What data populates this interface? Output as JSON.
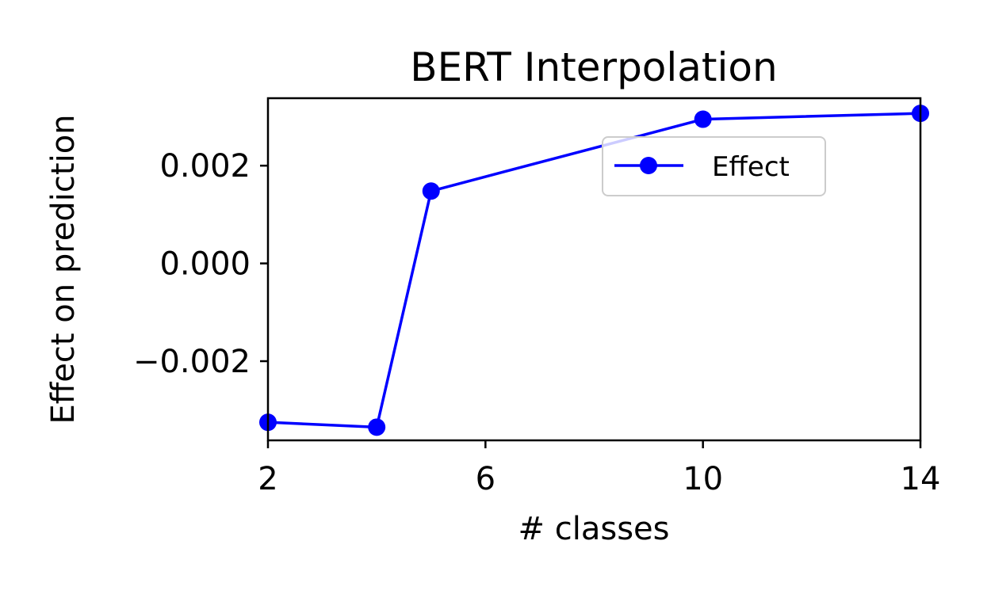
{
  "chart_data": {
    "type": "line",
    "title": "BERT Interpolation",
    "xlabel": "# classes",
    "ylabel": "Effect on prediction",
    "x": [
      2,
      4,
      5,
      10,
      14
    ],
    "series": [
      {
        "name": "Effect",
        "color": "#0000ff",
        "marker": "circle",
        "values": [
          -0.00325,
          -0.00335,
          0.00148,
          0.00295,
          0.00307
        ]
      }
    ],
    "xlim": [
      2,
      14
    ],
    "ylim": [
      -0.00362,
      0.00338
    ],
    "xticks": [
      2,
      6,
      10,
      14
    ],
    "xtick_labels": [
      "2",
      "6",
      "10",
      "14"
    ],
    "yticks": [
      -0.002,
      0.0,
      0.002
    ],
    "ytick_labels": [
      "−0.002",
      "0.000",
      "0.002"
    ],
    "grid": false,
    "legend": {
      "position": "upper-right",
      "entries": [
        "Effect"
      ]
    }
  }
}
